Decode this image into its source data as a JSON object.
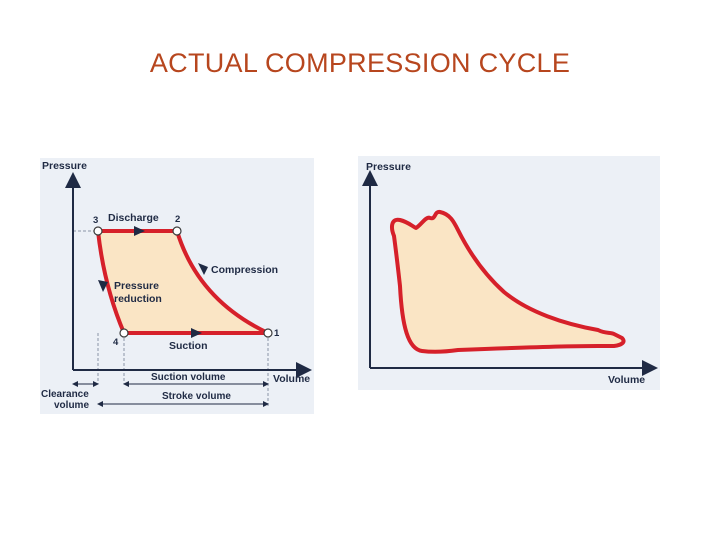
{
  "title": "ACTUAL COMPRESSION CYCLE",
  "colors": {
    "title": "#b7461e",
    "cycle_stroke": "#d6202a",
    "cycle_fill": "#fae5c5",
    "panel_bg": "#ecf0f6",
    "axis": "#1f2a44"
  },
  "left_diagram": {
    "y_axis_label": "Pressure",
    "x_axis_label": "Volume",
    "points": {
      "p1": "1",
      "p2": "2",
      "p3": "3",
      "p4": "4"
    },
    "processes": {
      "discharge": "Discharge",
      "compression": "Compression",
      "pressure_reduction_line1": "Pressure",
      "pressure_reduction_line2": "reduction",
      "suction": "Suction"
    },
    "dimensions": {
      "suction_volume": "Suction volume",
      "stroke_volume": "Stroke volume",
      "clearance_volume_line1": "Clearance",
      "clearance_volume_line2": "volume"
    }
  },
  "right_diagram": {
    "y_axis_label": "Pressure",
    "x_axis_label": "Volume"
  }
}
